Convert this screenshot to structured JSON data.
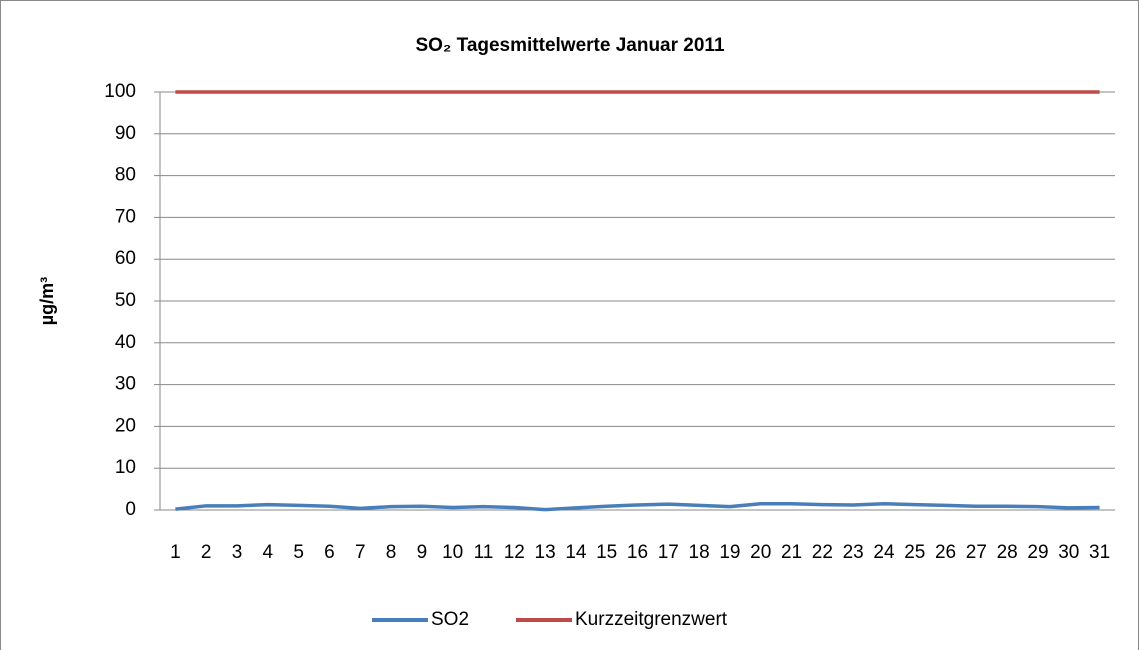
{
  "chart_data": {
    "type": "line",
    "title": "SO₂ Tagesmittelwerte Januar 2011",
    "y_label": "µg/m³",
    "categories": [
      "1",
      "2",
      "3",
      "4",
      "5",
      "6",
      "7",
      "8",
      "9",
      "10",
      "11",
      "12",
      "13",
      "14",
      "15",
      "16",
      "17",
      "18",
      "19",
      "20",
      "21",
      "22",
      "23",
      "24",
      "25",
      "26",
      "27",
      "28",
      "29",
      "30",
      "31"
    ],
    "series": [
      {
        "name": "SO2",
        "color": "#4a7ebb",
        "values": [
          0.2,
          1,
          1,
          1.3,
          1.1,
          0.9,
          0.4,
          0.8,
          0.9,
          0.6,
          0.8,
          0.6,
          0.1,
          0.5,
          0.9,
          1.2,
          1.4,
          1.1,
          0.8,
          1.5,
          1.5,
          1.3,
          1.2,
          1.5,
          1.3,
          1.1,
          0.9,
          0.9,
          0.8,
          0.5,
          0.6
        ]
      },
      {
        "name": "Kurzzeitgrenzwert",
        "color": "#be4b48",
        "values": [
          100,
          100,
          100,
          100,
          100,
          100,
          100,
          100,
          100,
          100,
          100,
          100,
          100,
          100,
          100,
          100,
          100,
          100,
          100,
          100,
          100,
          100,
          100,
          100,
          100,
          100,
          100,
          100,
          100,
          100,
          100
        ]
      }
    ],
    "ylim": [
      0,
      100
    ],
    "yticks": [
      0,
      10,
      20,
      30,
      40,
      50,
      60,
      70,
      80,
      90,
      100
    ],
    "grid": true,
    "legend": "bottom"
  }
}
